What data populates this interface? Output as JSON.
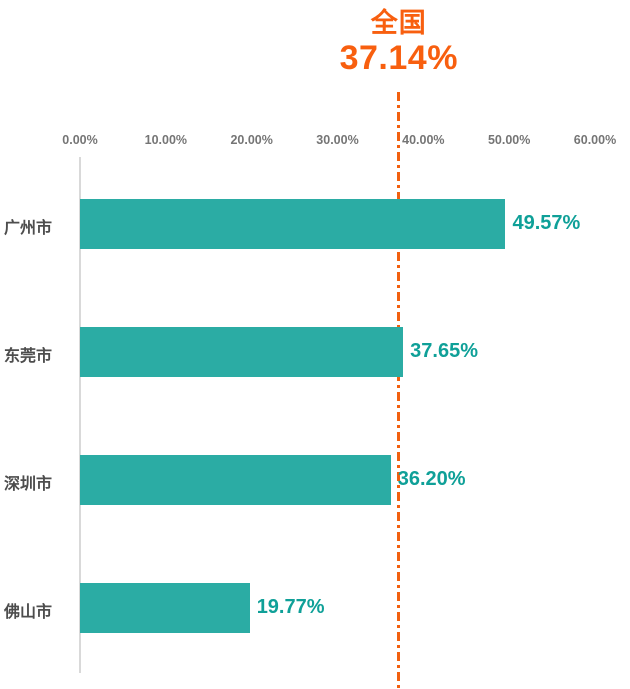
{
  "chart_data": {
    "type": "bar",
    "orientation": "horizontal",
    "title": "全国 37.14%",
    "categories": [
      "广州市",
      "东莞市",
      "深圳市",
      "佛山市"
    ],
    "values": [
      49.57,
      37.65,
      36.2,
      19.77
    ],
    "value_labels": [
      "49.57%",
      "37.65%",
      "36.20%",
      "19.77%"
    ],
    "national_label": "全国",
    "national_value": 37.14,
    "national_value_label": "37.14%",
    "x_ticks": [
      "0.00%",
      "10.00%",
      "20.00%",
      "30.00%",
      "40.00%",
      "50.00%",
      "60.00%"
    ],
    "xlim": [
      0,
      60
    ],
    "grid": "off",
    "legend": "none",
    "colors": {
      "bar": "#2BACA4",
      "value_text": "#0FA098",
      "title_text": "#F85F0F",
      "reference_line": "#F2600F",
      "axis_tick_text": "#757575",
      "category_text": "#4D4D4D",
      "axis_line": "#D9D9D9"
    }
  }
}
